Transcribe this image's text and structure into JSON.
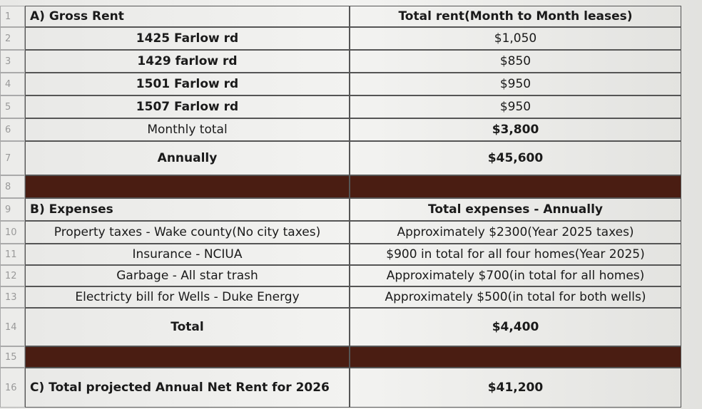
{
  "rows": [
    {
      "num": "1",
      "a": "A) Gross Rent",
      "b": "Total rent(Month to Month leases)"
    },
    {
      "num": "2",
      "a": "1425 Farlow rd",
      "b": "$1,050"
    },
    {
      "num": "3",
      "a": "1429 farlow rd",
      "b": "$850"
    },
    {
      "num": "4",
      "a": "1501 Farlow rd",
      "b": "$950"
    },
    {
      "num": "5",
      "a": "1507 Farlow rd",
      "b": "$950"
    },
    {
      "num": "6",
      "a": "Monthly total",
      "b": "$3,800"
    },
    {
      "num": "7",
      "a": "Annually",
      "b": "$45,600"
    },
    {
      "num": "8"
    },
    {
      "num": "9",
      "a": "B) Expenses",
      "b": "Total expenses - Annually"
    },
    {
      "num": "10",
      "a": "Property taxes - Wake county(No city taxes)",
      "b": "Approximately $2300(Year 2025 taxes)"
    },
    {
      "num": "11",
      "a": "Insurance - NCIUA",
      "b": "$900 in total for all four homes(Year 2025)"
    },
    {
      "num": "12",
      "a": "Garbage - All star trash",
      "b": "Approximately $700(in total for all homes)"
    },
    {
      "num": "13",
      "a": "Electricty bill for Wells - Duke Energy",
      "b": "Approximately $500(in total for both wells)"
    },
    {
      "num": "14",
      "a": "Total",
      "b": "$4,400"
    },
    {
      "num": "15"
    },
    {
      "num": "16",
      "a": "C) Total projected Annual Net Rent for 2026",
      "b": "$41,200"
    }
  ]
}
